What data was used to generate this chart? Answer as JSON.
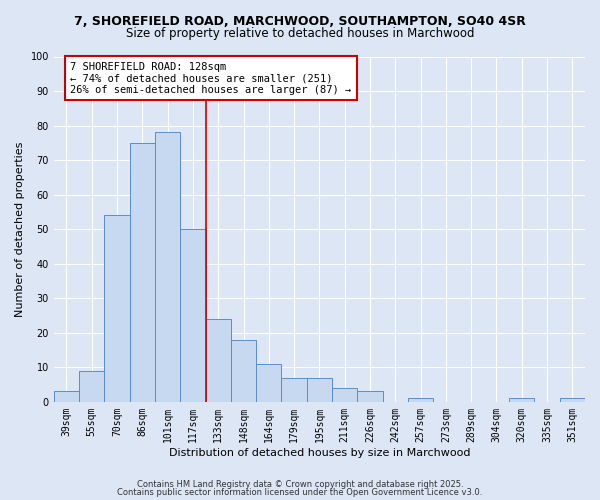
{
  "title1": "7, SHOREFIELD ROAD, MARCHWOOD, SOUTHAMPTON, SO40 4SR",
  "title2": "Size of property relative to detached houses in Marchwood",
  "xlabel": "Distribution of detached houses by size in Marchwood",
  "ylabel": "Number of detached properties",
  "categories": [
    "39sqm",
    "55sqm",
    "70sqm",
    "86sqm",
    "101sqm",
    "117sqm",
    "133sqm",
    "148sqm",
    "164sqm",
    "179sqm",
    "195sqm",
    "211sqm",
    "226sqm",
    "242sqm",
    "257sqm",
    "273sqm",
    "289sqm",
    "304sqm",
    "320sqm",
    "335sqm",
    "351sqm"
  ],
  "values": [
    3,
    9,
    54,
    75,
    78,
    50,
    24,
    18,
    11,
    7,
    7,
    4,
    3,
    0,
    1,
    0,
    0,
    0,
    1,
    0,
    1
  ],
  "bar_color": "#c6d9f1",
  "bar_edge_color": "#5b8dc8",
  "vline_x_index": 5.5,
  "vline_color": "#cc0000",
  "annotation_text": "7 SHOREFIELD ROAD: 128sqm\n← 74% of detached houses are smaller (251)\n26% of semi-detached houses are larger (87) →",
  "annotation_box_color": "#ffffff",
  "annotation_box_edge_color": "#cc0000",
  "ylim": [
    0,
    100
  ],
  "yticks": [
    0,
    10,
    20,
    30,
    40,
    50,
    60,
    70,
    80,
    90,
    100
  ],
  "footer1": "Contains HM Land Registry data © Crown copyright and database right 2025.",
  "footer2": "Contains public sector information licensed under the Open Government Licence v3.0.",
  "background_color": "#dce6f5",
  "grid_color": "#ffffff",
  "title1_fontsize": 9,
  "title2_fontsize": 8.5,
  "axis_label_fontsize": 8,
  "tick_fontsize": 7,
  "annotation_fontsize": 7.5,
  "footer_fontsize": 6
}
